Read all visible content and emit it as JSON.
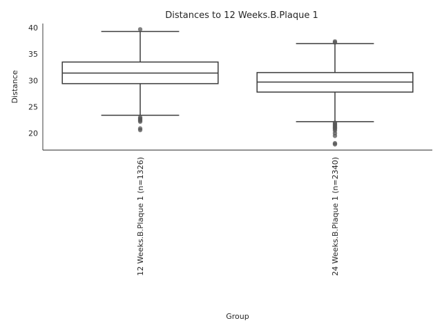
{
  "chart_data": {
    "type": "box",
    "title": "Distances to 12 Weeks.B.Plaque 1",
    "xlabel": "Group",
    "ylabel": "Distance",
    "ylim": [
      16.8,
      40.8
    ],
    "yticks": [
      20,
      25,
      30,
      35,
      40
    ],
    "grid": false,
    "colors": {
      "box_edge": "#3a3a3a",
      "box_fill": "#ffffff",
      "outlier": "#555555",
      "axis": "#262626"
    },
    "groups": [
      {
        "label": "12 Weeks.B.Plaque 1 (n=1326)",
        "whisker_low": 23.4,
        "q1": 29.4,
        "median": 31.4,
        "q3": 33.5,
        "whisker_high": 39.3,
        "outliers": [
          39.7,
          23.0,
          22.8,
          22.6,
          22.4,
          22.2,
          20.9,
          20.6
        ]
      },
      {
        "label": "24 Weeks.B.Plaque 1 (n=2340)",
        "whisker_low": 22.2,
        "q1": 27.8,
        "median": 29.7,
        "q3": 31.5,
        "whisker_high": 37.0,
        "outliers": [
          37.4,
          37.2,
          22.0,
          21.8,
          21.6,
          21.4,
          21.2,
          21.0,
          20.8,
          20.5,
          20.0,
          19.5,
          18.1,
          17.9
        ]
      }
    ]
  }
}
